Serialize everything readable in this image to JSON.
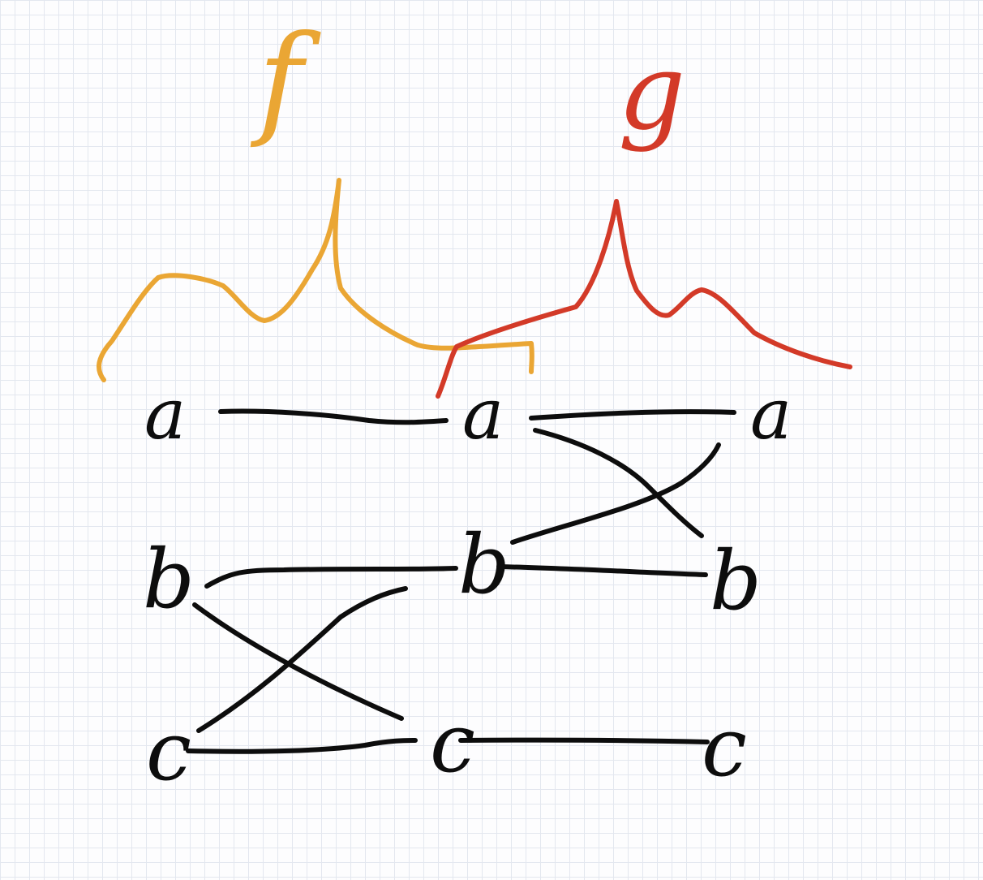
{
  "colors": {
    "ink": "#0d0d0d",
    "f_color": "#eaa634",
    "g_color": "#d33a28",
    "grid": "#e3e7ef"
  },
  "labels": {
    "f": "f",
    "g": "g"
  },
  "columns": [
    {
      "a": "a",
      "b": "b",
      "c": "c"
    },
    {
      "a": "a",
      "b": "b",
      "c": "c"
    },
    {
      "a": "a",
      "b": "b",
      "c": "c"
    }
  ]
}
